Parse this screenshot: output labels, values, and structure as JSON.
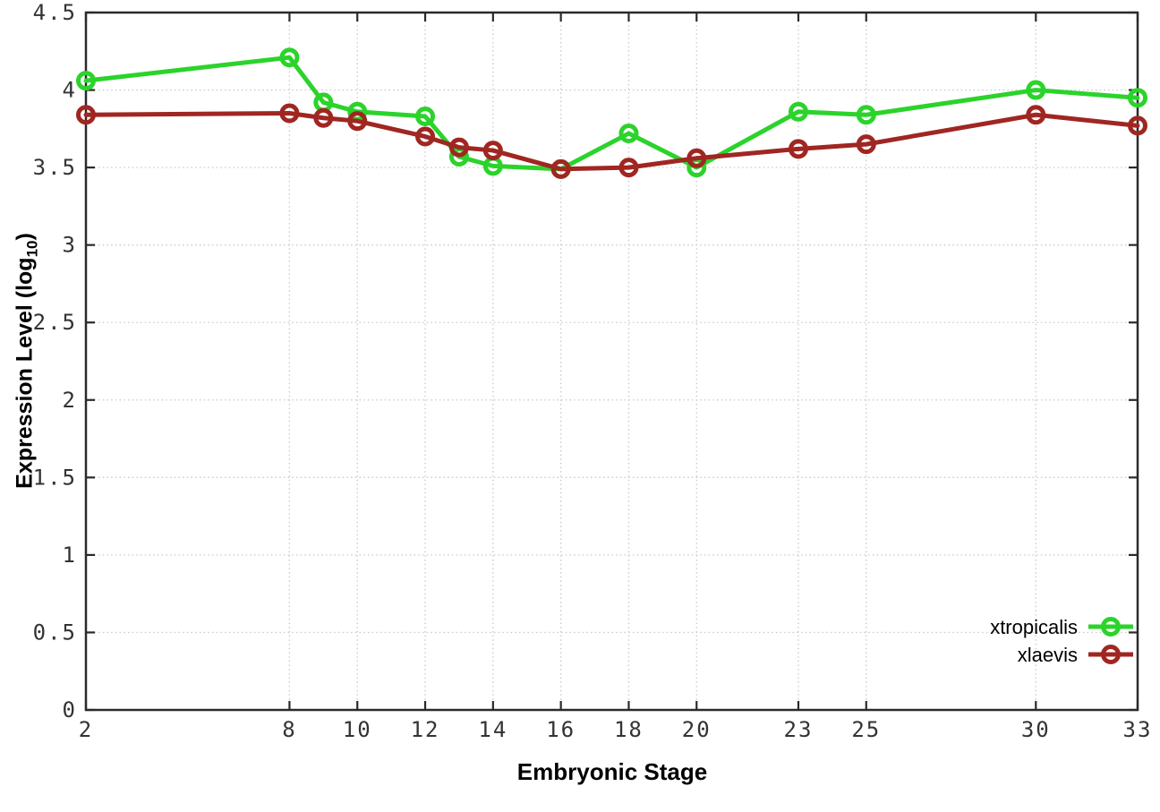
{
  "chart_data": {
    "type": "line",
    "title": "",
    "xlabel": "Embryonic Stage",
    "ylabel": "Expression Level (log10)",
    "ylabel_parts": {
      "prefix": "Expression Level (log",
      "sub": "10",
      "suffix": ")"
    },
    "xlim": [
      2,
      33
    ],
    "ylim": [
      0,
      4.5
    ],
    "grid": true,
    "legend_position": "bottom-right",
    "x_ticks": [
      2,
      8,
      10,
      12,
      14,
      16,
      18,
      20,
      23,
      25,
      30,
      33
    ],
    "x_tick_labels": [
      "2",
      "8",
      "10",
      "12",
      "14",
      "16",
      "18",
      "20",
      "23",
      "25",
      "30",
      "33"
    ],
    "y_ticks": [
      0,
      0.5,
      1,
      1.5,
      2,
      2.5,
      3,
      3.5,
      4,
      4.5
    ],
    "y_tick_labels": [
      "0",
      "0.5",
      "1",
      "1.5",
      "2",
      "2.5",
      "3",
      "3.5",
      "4",
      "4.5"
    ],
    "x": [
      2,
      8,
      9,
      10,
      12,
      13,
      14,
      16,
      18,
      20,
      23,
      25,
      30,
      33
    ],
    "series": [
      {
        "name": "xtropicalis",
        "color": "#2bd32b",
        "marker": "open-circle",
        "values": [
          4.06,
          4.21,
          3.92,
          3.86,
          3.83,
          3.57,
          3.51,
          3.49,
          3.72,
          3.5,
          3.86,
          3.84,
          4.0,
          3.95
        ]
      },
      {
        "name": "xlaevis",
        "color": "#a02622",
        "marker": "open-circle",
        "values": [
          3.84,
          3.85,
          3.82,
          3.8,
          3.7,
          3.63,
          3.61,
          3.49,
          3.5,
          3.56,
          3.62,
          3.65,
          3.84,
          3.77
        ]
      }
    ],
    "style": {
      "border_color": "#2a2a2a",
      "grid_color": "#c9c9c9",
      "tick_label_color": "#333333",
      "line_width": 5,
      "marker_radius": 8.5,
      "marker_stroke": 5
    }
  }
}
